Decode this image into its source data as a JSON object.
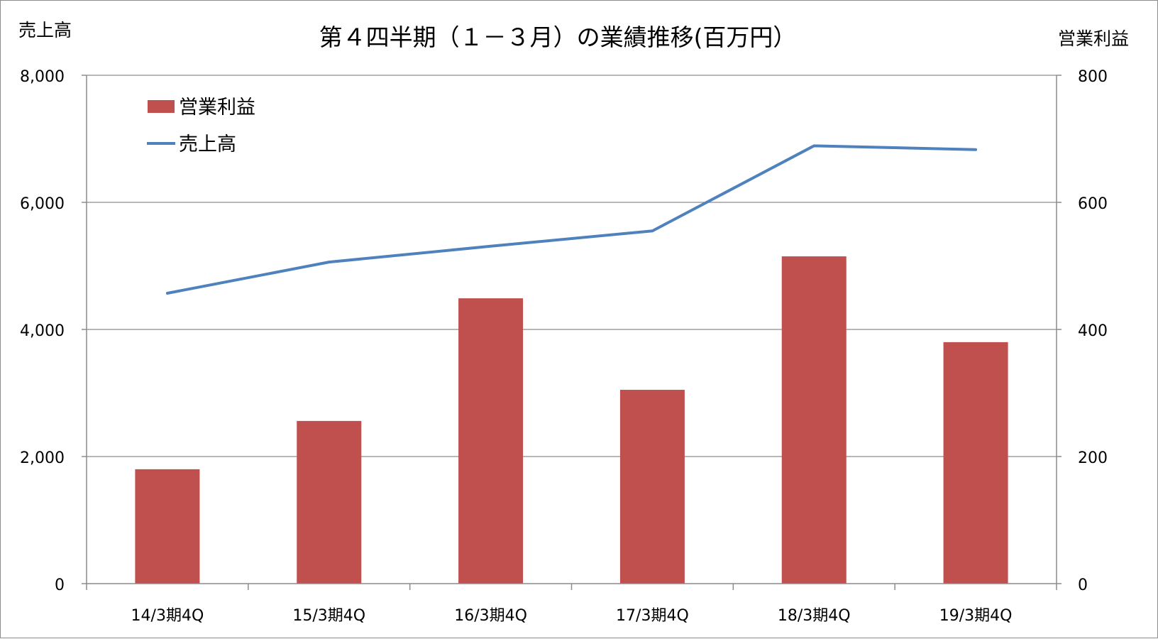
{
  "chart_data": {
    "type": "bar+line",
    "title": "第４四半期（１－３月）の業績推移(百万円）",
    "categories": [
      "14/3期4Q",
      "15/3期4Q",
      "16/3期4Q",
      "17/3期4Q",
      "18/3期4Q",
      "19/3期4Q"
    ],
    "left_axis": {
      "label": "売上高",
      "range": [
        0,
        8000
      ],
      "ticks": [
        "0",
        "2,000",
        "4,000",
        "6,000",
        "8,000"
      ],
      "tick_values": [
        0,
        2000,
        4000,
        6000,
        8000
      ]
    },
    "right_axis": {
      "label": "営業利益",
      "range": [
        0,
        800
      ],
      "ticks": [
        "0",
        "200",
        "400",
        "600",
        "800"
      ],
      "tick_values": [
        0,
        200,
        400,
        600,
        800
      ]
    },
    "series": [
      {
        "name": "営業利益",
        "kind": "bar",
        "axis": "right",
        "color": "#c0504d",
        "values": [
          180,
          256,
          449,
          305,
          515,
          380
        ]
      },
      {
        "name": "売上高",
        "kind": "line",
        "axis": "left",
        "color": "#4f81bd",
        "values": [
          4570,
          5060,
          5310,
          5550,
          6890,
          6830
        ]
      }
    ],
    "grid": true,
    "legend": "top-left"
  }
}
